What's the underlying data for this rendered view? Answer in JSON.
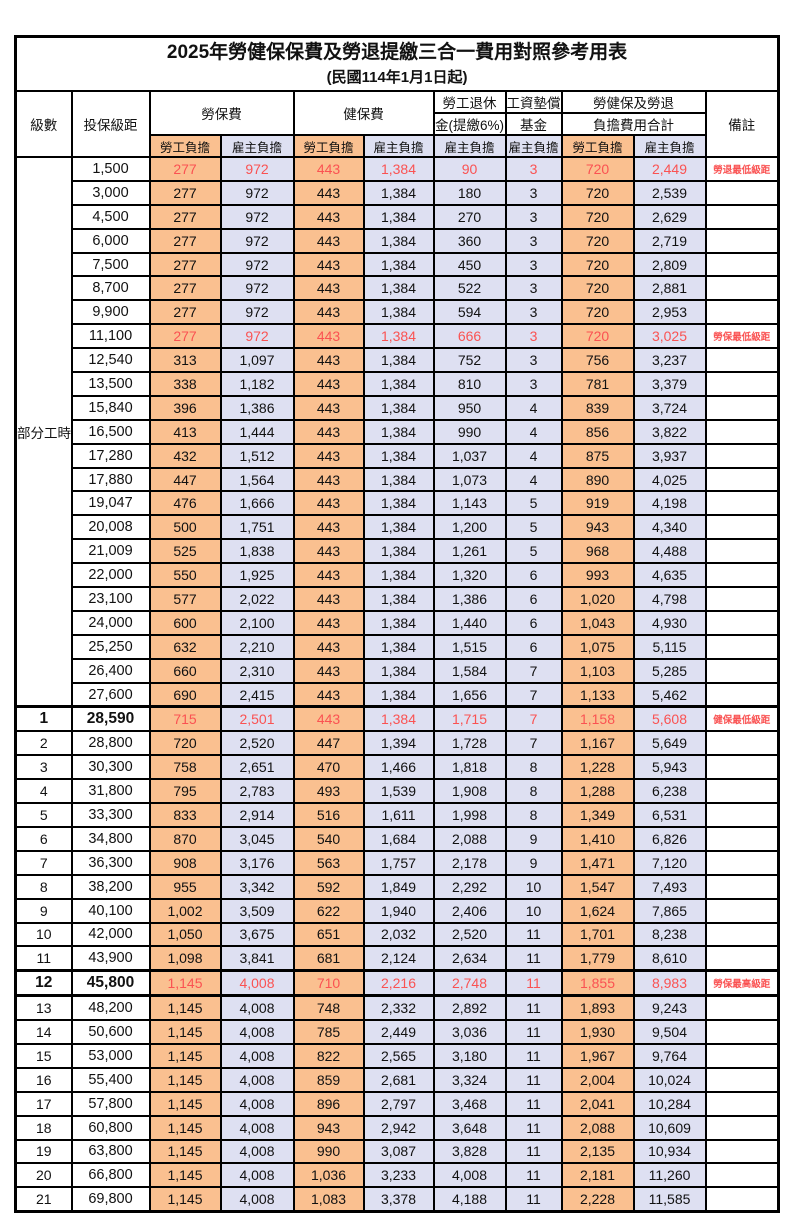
{
  "title": "2025年勞健保保費及勞退提繳三合一費用對照參考用表",
  "subtitle": "(民國114年1月1日起)",
  "colors": {
    "worker_bg": "#FAC090",
    "employer_bg": "#DEE0F2",
    "highlight_text": "#FA5252",
    "grid": "#000000"
  },
  "header": {
    "level": "級數",
    "bracket": "投保級距",
    "labor_group": "勞保費",
    "health_group": "健保費",
    "pension_line1": "勞工退休",
    "pension_line2": "金(提繳6%)",
    "wage_fund_line1": "工資墊償",
    "wage_fund_line2": "基金",
    "total_line1": "勞健保及勞退",
    "total_line2": "負擔費用合計",
    "worker": "勞工負擔",
    "employer": "雇主負擔",
    "note": "備註"
  },
  "part_time_label": "部分工時",
  "rows": [
    {
      "level": "",
      "bracket": "1,500",
      "labor_w": "277",
      "labor_e": "972",
      "health_w": "443",
      "health_e": "1,384",
      "pension_e": "90",
      "fund_e": "3",
      "total_w": "720",
      "total_e": "2,449",
      "note": "勞退最低級距",
      "highlight": true,
      "emph": false
    },
    {
      "level": "",
      "bracket": "3,000",
      "labor_w": "277",
      "labor_e": "972",
      "health_w": "443",
      "health_e": "1,384",
      "pension_e": "180",
      "fund_e": "3",
      "total_w": "720",
      "total_e": "2,539",
      "note": "",
      "highlight": false,
      "emph": false
    },
    {
      "level": "",
      "bracket": "4,500",
      "labor_w": "277",
      "labor_e": "972",
      "health_w": "443",
      "health_e": "1,384",
      "pension_e": "270",
      "fund_e": "3",
      "total_w": "720",
      "total_e": "2,629",
      "note": "",
      "highlight": false,
      "emph": false
    },
    {
      "level": "",
      "bracket": "6,000",
      "labor_w": "277",
      "labor_e": "972",
      "health_w": "443",
      "health_e": "1,384",
      "pension_e": "360",
      "fund_e": "3",
      "total_w": "720",
      "total_e": "2,719",
      "note": "",
      "highlight": false,
      "emph": false
    },
    {
      "level": "",
      "bracket": "7,500",
      "labor_w": "277",
      "labor_e": "972",
      "health_w": "443",
      "health_e": "1,384",
      "pension_e": "450",
      "fund_e": "3",
      "total_w": "720",
      "total_e": "2,809",
      "note": "",
      "highlight": false,
      "emph": false
    },
    {
      "level": "",
      "bracket": "8,700",
      "labor_w": "277",
      "labor_e": "972",
      "health_w": "443",
      "health_e": "1,384",
      "pension_e": "522",
      "fund_e": "3",
      "total_w": "720",
      "total_e": "2,881",
      "note": "",
      "highlight": false,
      "emph": false
    },
    {
      "level": "",
      "bracket": "9,900",
      "labor_w": "277",
      "labor_e": "972",
      "health_w": "443",
      "health_e": "1,384",
      "pension_e": "594",
      "fund_e": "3",
      "total_w": "720",
      "total_e": "2,953",
      "note": "",
      "highlight": false,
      "emph": false
    },
    {
      "level": "",
      "bracket": "11,100",
      "labor_w": "277",
      "labor_e": "972",
      "health_w": "443",
      "health_e": "1,384",
      "pension_e": "666",
      "fund_e": "3",
      "total_w": "720",
      "total_e": "3,025",
      "note": "勞保最低級距",
      "highlight": true,
      "emph": false
    },
    {
      "level": "",
      "bracket": "12,540",
      "labor_w": "313",
      "labor_e": "1,097",
      "health_w": "443",
      "health_e": "1,384",
      "pension_e": "752",
      "fund_e": "3",
      "total_w": "756",
      "total_e": "3,237",
      "note": "",
      "highlight": false,
      "emph": false
    },
    {
      "level": "",
      "bracket": "13,500",
      "labor_w": "338",
      "labor_e": "1,182",
      "health_w": "443",
      "health_e": "1,384",
      "pension_e": "810",
      "fund_e": "3",
      "total_w": "781",
      "total_e": "3,379",
      "note": "",
      "highlight": false,
      "emph": false
    },
    {
      "level": "",
      "bracket": "15,840",
      "labor_w": "396",
      "labor_e": "1,386",
      "health_w": "443",
      "health_e": "1,384",
      "pension_e": "950",
      "fund_e": "4",
      "total_w": "839",
      "total_e": "3,724",
      "note": "",
      "highlight": false,
      "emph": false
    },
    {
      "level": "",
      "bracket": "16,500",
      "labor_w": "413",
      "labor_e": "1,444",
      "health_w": "443",
      "health_e": "1,384",
      "pension_e": "990",
      "fund_e": "4",
      "total_w": "856",
      "total_e": "3,822",
      "note": "",
      "highlight": false,
      "emph": false
    },
    {
      "level": "",
      "bracket": "17,280",
      "labor_w": "432",
      "labor_e": "1,512",
      "health_w": "443",
      "health_e": "1,384",
      "pension_e": "1,037",
      "fund_e": "4",
      "total_w": "875",
      "total_e": "3,937",
      "note": "",
      "highlight": false,
      "emph": false
    },
    {
      "level": "",
      "bracket": "17,880",
      "labor_w": "447",
      "labor_e": "1,564",
      "health_w": "443",
      "health_e": "1,384",
      "pension_e": "1,073",
      "fund_e": "4",
      "total_w": "890",
      "total_e": "4,025",
      "note": "",
      "highlight": false,
      "emph": false
    },
    {
      "level": "",
      "bracket": "19,047",
      "labor_w": "476",
      "labor_e": "1,666",
      "health_w": "443",
      "health_e": "1,384",
      "pension_e": "1,143",
      "fund_e": "5",
      "total_w": "919",
      "total_e": "4,198",
      "note": "",
      "highlight": false,
      "emph": false
    },
    {
      "level": "",
      "bracket": "20,008",
      "labor_w": "500",
      "labor_e": "1,751",
      "health_w": "443",
      "health_e": "1,384",
      "pension_e": "1,200",
      "fund_e": "5",
      "total_w": "943",
      "total_e": "4,340",
      "note": "",
      "highlight": false,
      "emph": false
    },
    {
      "level": "",
      "bracket": "21,009",
      "labor_w": "525",
      "labor_e": "1,838",
      "health_w": "443",
      "health_e": "1,384",
      "pension_e": "1,261",
      "fund_e": "5",
      "total_w": "968",
      "total_e": "4,488",
      "note": "",
      "highlight": false,
      "emph": false
    },
    {
      "level": "",
      "bracket": "22,000",
      "labor_w": "550",
      "labor_e": "1,925",
      "health_w": "443",
      "health_e": "1,384",
      "pension_e": "1,320",
      "fund_e": "6",
      "total_w": "993",
      "total_e": "4,635",
      "note": "",
      "highlight": false,
      "emph": false
    },
    {
      "level": "",
      "bracket": "23,100",
      "labor_w": "577",
      "labor_e": "2,022",
      "health_w": "443",
      "health_e": "1,384",
      "pension_e": "1,386",
      "fund_e": "6",
      "total_w": "1,020",
      "total_e": "4,798",
      "note": "",
      "highlight": false,
      "emph": false
    },
    {
      "level": "",
      "bracket": "24,000",
      "labor_w": "600",
      "labor_e": "2,100",
      "health_w": "443",
      "health_e": "1,384",
      "pension_e": "1,440",
      "fund_e": "6",
      "total_w": "1,043",
      "total_e": "4,930",
      "note": "",
      "highlight": false,
      "emph": false
    },
    {
      "level": "",
      "bracket": "25,250",
      "labor_w": "632",
      "labor_e": "2,210",
      "health_w": "443",
      "health_e": "1,384",
      "pension_e": "1,515",
      "fund_e": "6",
      "total_w": "1,075",
      "total_e": "5,115",
      "note": "",
      "highlight": false,
      "emph": false
    },
    {
      "level": "",
      "bracket": "26,400",
      "labor_w": "660",
      "labor_e": "2,310",
      "health_w": "443",
      "health_e": "1,384",
      "pension_e": "1,584",
      "fund_e": "7",
      "total_w": "1,103",
      "total_e": "5,285",
      "note": "",
      "highlight": false,
      "emph": false
    },
    {
      "level": "",
      "bracket": "27,600",
      "labor_w": "690",
      "labor_e": "2,415",
      "health_w": "443",
      "health_e": "1,384",
      "pension_e": "1,656",
      "fund_e": "7",
      "total_w": "1,133",
      "total_e": "5,462",
      "note": "",
      "highlight": false,
      "emph": false
    },
    {
      "level": "1",
      "bracket": "28,590",
      "labor_w": "715",
      "labor_e": "2,501",
      "health_w": "443",
      "health_e": "1,384",
      "pension_e": "1,715",
      "fund_e": "7",
      "total_w": "1,158",
      "total_e": "5,608",
      "note": "健保最低級距",
      "highlight": true,
      "emph": true
    },
    {
      "level": "2",
      "bracket": "28,800",
      "labor_w": "720",
      "labor_e": "2,520",
      "health_w": "447",
      "health_e": "1,394",
      "pension_e": "1,728",
      "fund_e": "7",
      "total_w": "1,167",
      "total_e": "5,649",
      "note": "",
      "highlight": false,
      "emph": false
    },
    {
      "level": "3",
      "bracket": "30,300",
      "labor_w": "758",
      "labor_e": "2,651",
      "health_w": "470",
      "health_e": "1,466",
      "pension_e": "1,818",
      "fund_e": "8",
      "total_w": "1,228",
      "total_e": "5,943",
      "note": "",
      "highlight": false,
      "emph": false
    },
    {
      "level": "4",
      "bracket": "31,800",
      "labor_w": "795",
      "labor_e": "2,783",
      "health_w": "493",
      "health_e": "1,539",
      "pension_e": "1,908",
      "fund_e": "8",
      "total_w": "1,288",
      "total_e": "6,238",
      "note": "",
      "highlight": false,
      "emph": false
    },
    {
      "level": "5",
      "bracket": "33,300",
      "labor_w": "833",
      "labor_e": "2,914",
      "health_w": "516",
      "health_e": "1,611",
      "pension_e": "1,998",
      "fund_e": "8",
      "total_w": "1,349",
      "total_e": "6,531",
      "note": "",
      "highlight": false,
      "emph": false
    },
    {
      "level": "6",
      "bracket": "34,800",
      "labor_w": "870",
      "labor_e": "3,045",
      "health_w": "540",
      "health_e": "1,684",
      "pension_e": "2,088",
      "fund_e": "9",
      "total_w": "1,410",
      "total_e": "6,826",
      "note": "",
      "highlight": false,
      "emph": false
    },
    {
      "level": "7",
      "bracket": "36,300",
      "labor_w": "908",
      "labor_e": "3,176",
      "health_w": "563",
      "health_e": "1,757",
      "pension_e": "2,178",
      "fund_e": "9",
      "total_w": "1,471",
      "total_e": "7,120",
      "note": "",
      "highlight": false,
      "emph": false
    },
    {
      "level": "8",
      "bracket": "38,200",
      "labor_w": "955",
      "labor_e": "3,342",
      "health_w": "592",
      "health_e": "1,849",
      "pension_e": "2,292",
      "fund_e": "10",
      "total_w": "1,547",
      "total_e": "7,493",
      "note": "",
      "highlight": false,
      "emph": false
    },
    {
      "level": "9",
      "bracket": "40,100",
      "labor_w": "1,002",
      "labor_e": "3,509",
      "health_w": "622",
      "health_e": "1,940",
      "pension_e": "2,406",
      "fund_e": "10",
      "total_w": "1,624",
      "total_e": "7,865",
      "note": "",
      "highlight": false,
      "emph": false
    },
    {
      "level": "10",
      "bracket": "42,000",
      "labor_w": "1,050",
      "labor_e": "3,675",
      "health_w": "651",
      "health_e": "2,032",
      "pension_e": "2,520",
      "fund_e": "11",
      "total_w": "1,701",
      "total_e": "8,238",
      "note": "",
      "highlight": false,
      "emph": false
    },
    {
      "level": "11",
      "bracket": "43,900",
      "labor_w": "1,098",
      "labor_e": "3,841",
      "health_w": "681",
      "health_e": "2,124",
      "pension_e": "2,634",
      "fund_e": "11",
      "total_w": "1,779",
      "total_e": "8,610",
      "note": "",
      "highlight": false,
      "emph": false
    },
    {
      "level": "12",
      "bracket": "45,800",
      "labor_w": "1,145",
      "labor_e": "4,008",
      "health_w": "710",
      "health_e": "2,216",
      "pension_e": "2,748",
      "fund_e": "11",
      "total_w": "1,855",
      "total_e": "8,983",
      "note": "勞保最高級距",
      "highlight": true,
      "emph": true
    },
    {
      "level": "13",
      "bracket": "48,200",
      "labor_w": "1,145",
      "labor_e": "4,008",
      "health_w": "748",
      "health_e": "2,332",
      "pension_e": "2,892",
      "fund_e": "11",
      "total_w": "1,893",
      "total_e": "9,243",
      "note": "",
      "highlight": false,
      "emph": false
    },
    {
      "level": "14",
      "bracket": "50,600",
      "labor_w": "1,145",
      "labor_e": "4,008",
      "health_w": "785",
      "health_e": "2,449",
      "pension_e": "3,036",
      "fund_e": "11",
      "total_w": "1,930",
      "total_e": "9,504",
      "note": "",
      "highlight": false,
      "emph": false
    },
    {
      "level": "15",
      "bracket": "53,000",
      "labor_w": "1,145",
      "labor_e": "4,008",
      "health_w": "822",
      "health_e": "2,565",
      "pension_e": "3,180",
      "fund_e": "11",
      "total_w": "1,967",
      "total_e": "9,764",
      "note": "",
      "highlight": false,
      "emph": false
    },
    {
      "level": "16",
      "bracket": "55,400",
      "labor_w": "1,145",
      "labor_e": "4,008",
      "health_w": "859",
      "health_e": "2,681",
      "pension_e": "3,324",
      "fund_e": "11",
      "total_w": "2,004",
      "total_e": "10,024",
      "note": "",
      "highlight": false,
      "emph": false
    },
    {
      "level": "17",
      "bracket": "57,800",
      "labor_w": "1,145",
      "labor_e": "4,008",
      "health_w": "896",
      "health_e": "2,797",
      "pension_e": "3,468",
      "fund_e": "11",
      "total_w": "2,041",
      "total_e": "10,284",
      "note": "",
      "highlight": false,
      "emph": false
    },
    {
      "level": "18",
      "bracket": "60,800",
      "labor_w": "1,145",
      "labor_e": "4,008",
      "health_w": "943",
      "health_e": "2,942",
      "pension_e": "3,648",
      "fund_e": "11",
      "total_w": "2,088",
      "total_e": "10,609",
      "note": "",
      "highlight": false,
      "emph": false
    },
    {
      "level": "19",
      "bracket": "63,800",
      "labor_w": "1,145",
      "labor_e": "4,008",
      "health_w": "990",
      "health_e": "3,087",
      "pension_e": "3,828",
      "fund_e": "11",
      "total_w": "2,135",
      "total_e": "10,934",
      "note": "",
      "highlight": false,
      "emph": false
    },
    {
      "level": "20",
      "bracket": "66,800",
      "labor_w": "1,145",
      "labor_e": "4,008",
      "health_w": "1,036",
      "health_e": "3,233",
      "pension_e": "4,008",
      "fund_e": "11",
      "total_w": "2,181",
      "total_e": "11,260",
      "note": "",
      "highlight": false,
      "emph": false
    },
    {
      "level": "21",
      "bracket": "69,800",
      "labor_w": "1,145",
      "labor_e": "4,008",
      "health_w": "1,083",
      "health_e": "3,378",
      "pension_e": "4,188",
      "fund_e": "11",
      "total_w": "2,228",
      "total_e": "11,585",
      "note": "",
      "highlight": false,
      "emph": false
    }
  ]
}
